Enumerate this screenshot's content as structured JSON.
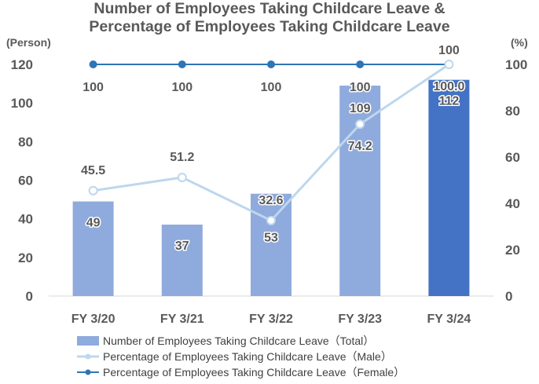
{
  "title_line1": "Number of Employees Taking Childcare Leave &",
  "title_line2": "Percentage of Employees Taking Childcare Leave",
  "colors": {
    "bar": "#8faadc",
    "bar_highlight": "#4472c4",
    "male_line": "#bdd7ee",
    "female_line": "#2e75b6",
    "text": "#595959"
  },
  "chart_data": {
    "type": "bar",
    "title": "Number of Employees Taking Childcare Leave & Percentage of Employees Taking Childcare Leave",
    "categories": [
      "FY 3/20",
      "FY 3/21",
      "FY 3/22",
      "FY 3/23",
      "FY 3/24"
    ],
    "ylabel": "(Person)",
    "y2label": "(%)",
    "ylim": [
      0,
      120
    ],
    "y2lim": [
      0,
      100
    ],
    "yticks": [
      "0",
      "20",
      "40",
      "60",
      "80",
      "100",
      "120"
    ],
    "y2ticks": [
      "0",
      "20",
      "40",
      "60",
      "80",
      "100"
    ],
    "series": [
      {
        "name": "Number of Employees Taking Childcare Leave（Total）",
        "kind": "bar",
        "axis": "left",
        "values": [
          49,
          37,
          53,
          109,
          112
        ],
        "labels": [
          "49",
          "37",
          "53",
          "109",
          "112"
        ]
      },
      {
        "name": "Percentage of Employees Taking Childcare Leave（Male）",
        "kind": "line",
        "axis": "right",
        "values": [
          45.5,
          51.2,
          32.6,
          74.2,
          100.0
        ],
        "labels": [
          "45.5",
          "51.2",
          "32.6",
          "74.2",
          "100.0"
        ]
      },
      {
        "name": "Percentage of Employees Taking Childcare Leave（Female）",
        "kind": "line",
        "axis": "right",
        "values": [
          100,
          100,
          100,
          100,
          100
        ],
        "labels": [
          "100",
          "100",
          "100",
          "100",
          "100"
        ]
      }
    ],
    "legend_position": "bottom",
    "grid": false
  }
}
